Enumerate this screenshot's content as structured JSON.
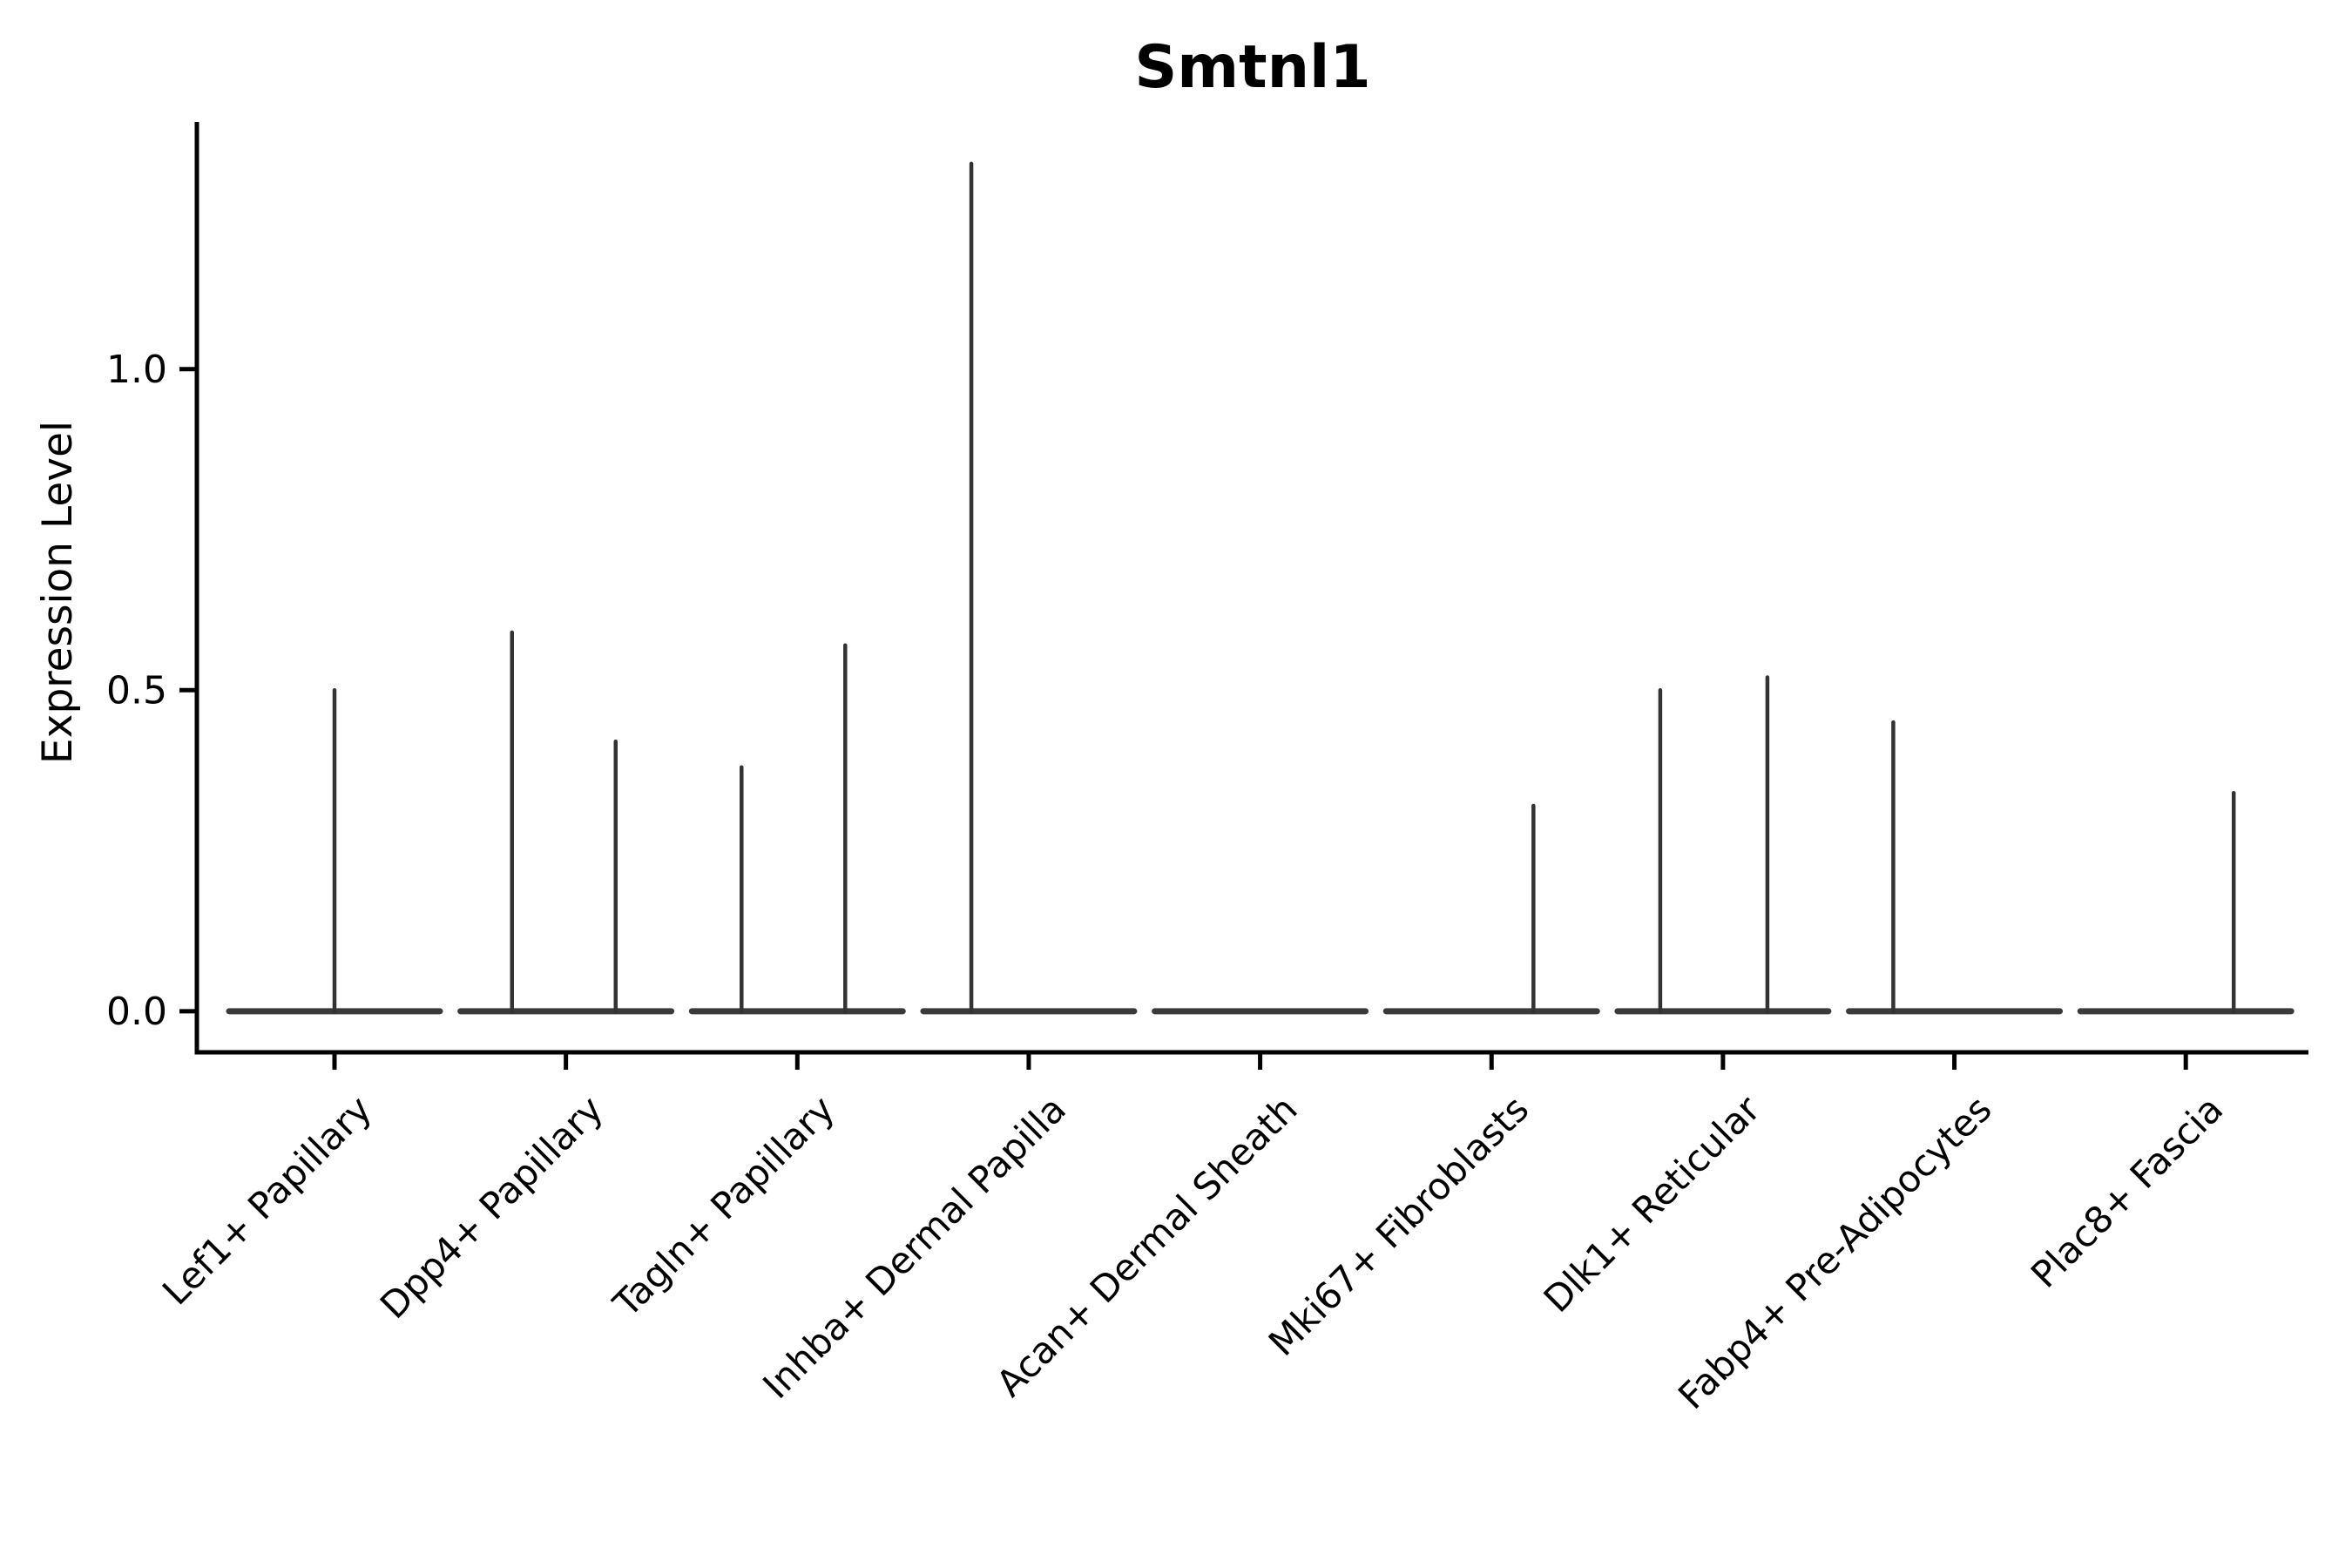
{
  "colors": {
    "background": "#ffffff",
    "axis": "#000000",
    "text": "#000000",
    "violin_spike": "#333333",
    "violin_baseline": "#3a3a3a"
  },
  "chart_data": {
    "type": "violin",
    "title": "Smtnl1",
    "xlabel": "",
    "ylabel": "Expression Level",
    "ylim": [
      -0.064,
      1.385
    ],
    "yticks": [
      0,
      0.5,
      1.0
    ],
    "ytick_labels": [
      "0.0",
      "0.5",
      "1.0"
    ],
    "grid": false,
    "legend_position": "none",
    "categories": [
      "Lef1+ Papillary",
      "Dpp4+ Papillary",
      "Tagln+ Papillary",
      "Inhba+ Dermal Papilla",
      "Acan+ Dermal Sheath",
      "Mki67+ Fibroblasts",
      "Dlk1+ Reticular",
      "Fabp4+ Pre-Adipocytes",
      "Plac8+ Fascia"
    ],
    "series": [
      {
        "category": "Lef1+ Papillary",
        "baseline_value": 0,
        "spikes": [
          {
            "dx": 0.0,
            "max": 0.5
          }
        ]
      },
      {
        "category": "Dpp4+ Papillary",
        "baseline_value": 0,
        "spikes": [
          {
            "dx": -0.233,
            "max": 0.59
          },
          {
            "dx": 0.215,
            "max": 0.42
          }
        ]
      },
      {
        "category": "Tagln+ Papillary",
        "baseline_value": 0,
        "spikes": [
          {
            "dx": -0.241,
            "max": 0.38
          },
          {
            "dx": 0.207,
            "max": 0.57
          }
        ]
      },
      {
        "category": "Inhba+ Dermal Papilla",
        "baseline_value": 0,
        "spikes": [
          {
            "dx": -0.248,
            "max": 1.32
          }
        ]
      },
      {
        "category": "Acan+ Dermal Sheath",
        "baseline_value": 0,
        "spikes": []
      },
      {
        "category": "Mki67+ Fibroblasts",
        "baseline_value": 0,
        "spikes": [
          {
            "dx": 0.181,
            "max": 0.32
          }
        ]
      },
      {
        "category": "Dlk1+ Reticular",
        "baseline_value": 0,
        "spikes": [
          {
            "dx": -0.271,
            "max": 0.5
          },
          {
            "dx": 0.192,
            "max": 0.52
          }
        ]
      },
      {
        "category": "Fabp4+ Pre-Adipocytes",
        "baseline_value": 0,
        "spikes": [
          {
            "dx": -0.264,
            "max": 0.45
          }
        ]
      },
      {
        "category": "Plac8+ Fascia",
        "baseline_value": 0,
        "spikes": [
          {
            "dx": 0.207,
            "max": 0.34
          }
        ]
      }
    ]
  }
}
